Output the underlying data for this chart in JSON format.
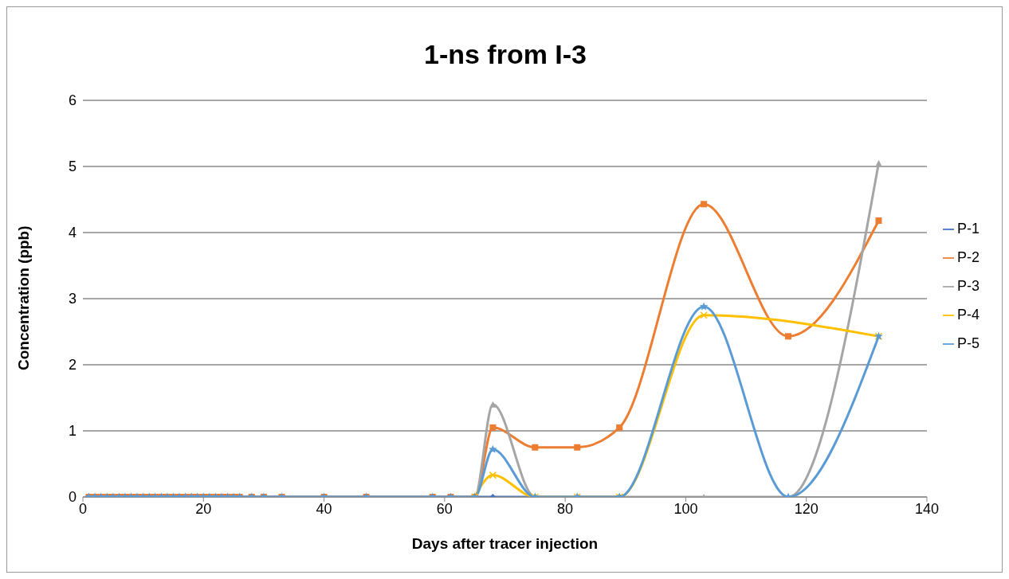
{
  "chart_data": {
    "type": "line",
    "title": "1-ns from I-3",
    "xlabel": "Days after tracer injection",
    "ylabel": "Concentration (ppb)",
    "x": [
      1,
      2,
      3,
      4,
      5,
      6,
      7,
      8,
      9,
      10,
      11,
      12,
      13,
      14,
      15,
      16,
      17,
      18,
      19,
      20,
      21,
      22,
      23,
      24,
      25,
      26,
      28,
      30,
      33,
      40,
      47,
      58,
      61,
      65,
      68,
      75,
      82,
      89,
      103,
      117,
      132
    ],
    "series": [
      {
        "name": "P-1",
        "color": "#4472c4",
        "marker": "diamond",
        "values": [
          0,
          0,
          0,
          0,
          0,
          0,
          0,
          0,
          0,
          0,
          0,
          0,
          0,
          0,
          0,
          0,
          0,
          0,
          0,
          0,
          0,
          0,
          0,
          0,
          0,
          0,
          0,
          0,
          0,
          0,
          0,
          0,
          0,
          0,
          0,
          0,
          0,
          0,
          null,
          null,
          null
        ]
      },
      {
        "name": "P-2",
        "color": "#ed7d31",
        "marker": "square",
        "values": [
          0,
          0,
          0,
          0,
          0,
          0,
          0,
          0,
          0,
          0,
          0,
          0,
          0,
          0,
          0,
          0,
          0,
          0,
          0,
          0,
          0,
          0,
          0,
          0,
          0,
          0,
          0,
          0,
          0,
          0,
          0,
          0,
          0,
          0,
          1.05,
          0.75,
          0.75,
          1.05,
          4.43,
          2.43,
          4.18
        ]
      },
      {
        "name": "P-3",
        "color": "#a5a5a5",
        "marker": "triangle",
        "values": [
          0,
          0,
          0,
          0,
          0,
          0,
          0,
          0,
          0,
          0,
          0,
          0,
          0,
          0,
          0,
          0,
          0,
          0,
          0,
          0,
          0,
          0,
          0,
          0,
          0,
          0,
          0,
          0,
          0,
          0,
          0,
          0,
          0,
          0,
          1.4,
          0,
          0,
          0,
          0,
          0,
          5.05
        ]
      },
      {
        "name": "P-4",
        "color": "#ffc000",
        "marker": "cross",
        "values": [
          null,
          null,
          null,
          null,
          null,
          null,
          null,
          null,
          null,
          null,
          null,
          null,
          null,
          null,
          null,
          null,
          null,
          null,
          null,
          null,
          null,
          null,
          null,
          null,
          null,
          null,
          null,
          null,
          null,
          null,
          null,
          null,
          null,
          0,
          0.33,
          0,
          0,
          0,
          2.75,
          null,
          2.43
        ]
      },
      {
        "name": "P-5",
        "color": "#5b9bd5",
        "marker": "star",
        "values": [
          0,
          0,
          0,
          0,
          0,
          0,
          0,
          0,
          0,
          0,
          0,
          0,
          0,
          0,
          0,
          0,
          0,
          0,
          0,
          0,
          0,
          0,
          0,
          0,
          0,
          0,
          0,
          0,
          0,
          0,
          0,
          0,
          0,
          0,
          0.72,
          0,
          0,
          0,
          2.88,
          0,
          2.43
        ]
      }
    ],
    "xlim": [
      0,
      140
    ],
    "xticks": [
      0,
      20,
      40,
      60,
      80,
      100,
      120,
      140
    ],
    "ylim": [
      0,
      6
    ],
    "yticks": [
      0,
      1,
      2,
      3,
      4,
      5,
      6
    ],
    "grid": "y",
    "legend": "right"
  }
}
